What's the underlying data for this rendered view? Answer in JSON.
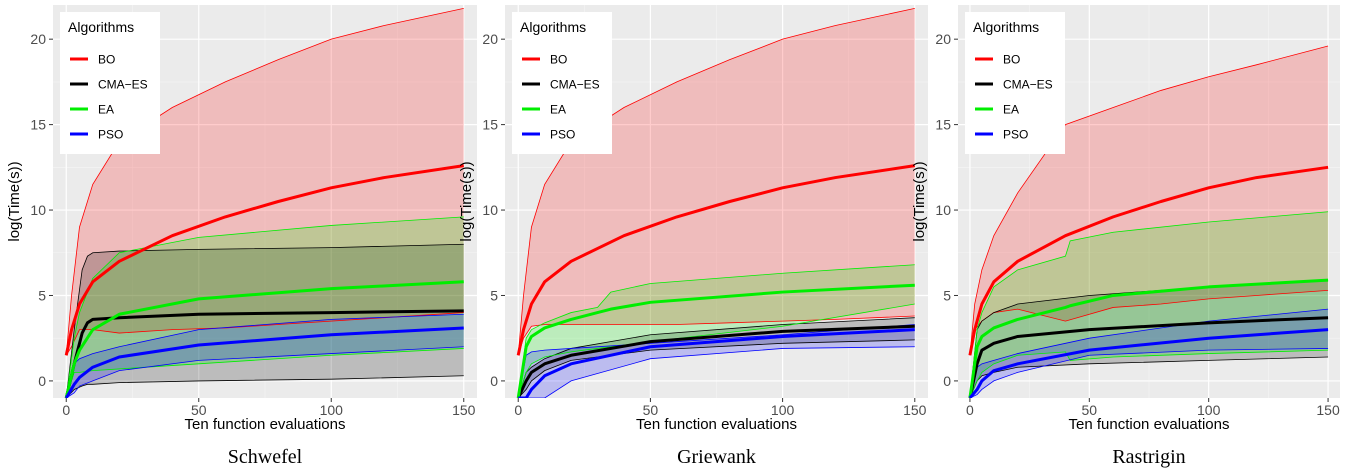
{
  "chart_data": [
    {
      "type": "line",
      "caption": "Schwefel",
      "xlabel": "Ten function evaluations",
      "ylabel": "log(Time(s))",
      "xlim": [
        -5,
        155
      ],
      "ylim": [
        -1,
        22
      ],
      "xticks": [
        0,
        50,
        100,
        150
      ],
      "yticks": [
        0,
        5,
        10,
        15,
        20
      ],
      "grid": true,
      "legend": {
        "title": "Algorithms",
        "position": "top-left",
        "entries": [
          "BO",
          "CMA−ES",
          "EA",
          "PSO"
        ]
      },
      "series": [
        {
          "name": "BO",
          "color": "#ff0000",
          "x": [
            0,
            2,
            5,
            10,
            20,
            40,
            60,
            80,
            100,
            120,
            150
          ],
          "mean": [
            1.5,
            3.0,
            4.5,
            5.8,
            7.0,
            8.5,
            9.6,
            10.5,
            11.3,
            11.9,
            12.6
          ],
          "upper": [
            1.5,
            5.0,
            9.0,
            11.5,
            14.0,
            16.0,
            17.5,
            18.8,
            20.0,
            20.8,
            21.8
          ],
          "lower": [
            1.5,
            2.0,
            3.0,
            3.0,
            2.8,
            3.0,
            3.1,
            3.3,
            3.5,
            3.7,
            4.0
          ]
        },
        {
          "name": "CMA−ES",
          "color": "#000000",
          "x": [
            0,
            3,
            6,
            8,
            10,
            20,
            50,
            100,
            150
          ],
          "mean": [
            -1.0,
            1.0,
            2.8,
            3.4,
            3.6,
            3.7,
            3.9,
            4.0,
            4.1
          ],
          "upper": [
            -1.0,
            3.0,
            6.5,
            7.3,
            7.5,
            7.6,
            7.7,
            7.8,
            8.0
          ],
          "lower": [
            -1.0,
            -0.5,
            -0.3,
            -0.2,
            -0.2,
            -0.1,
            0.0,
            0.1,
            0.3
          ]
        },
        {
          "name": "EA",
          "color": "#00ee00",
          "x": [
            0,
            3,
            5,
            10,
            20,
            50,
            100,
            150
          ],
          "mean": [
            -1.0,
            1.0,
            1.8,
            3.0,
            3.9,
            4.8,
            5.4,
            5.8
          ],
          "upper": [
            -1.0,
            2.5,
            4.0,
            6.0,
            7.5,
            8.4,
            9.1,
            9.6
          ],
          "lower": [
            -1.0,
            0.5,
            0.5,
            0.6,
            0.7,
            1.0,
            1.5,
            1.9
          ]
        },
        {
          "name": "PSO",
          "color": "#0000ff",
          "x": [
            0,
            3,
            5,
            10,
            20,
            50,
            100,
            150
          ],
          "mean": [
            -1.0,
            -0.2,
            0.2,
            0.8,
            1.4,
            2.1,
            2.7,
            3.1
          ],
          "upper": [
            -1.0,
            1.0,
            1.3,
            1.6,
            2.0,
            3.0,
            3.6,
            3.9
          ],
          "lower": [
            -1.0,
            -0.7,
            -0.3,
            0.0,
            0.6,
            1.2,
            1.6,
            2.0
          ]
        }
      ]
    },
    {
      "type": "line",
      "caption": "Griewank",
      "xlabel": "Ten function evaluations",
      "ylabel": "log(Time(s))",
      "xlim": [
        -5,
        155
      ],
      "ylim": [
        -1,
        22
      ],
      "xticks": [
        0,
        50,
        100,
        150
      ],
      "yticks": [
        0,
        5,
        10,
        15,
        20
      ],
      "grid": true,
      "legend": {
        "title": "Algorithms",
        "position": "top-left",
        "entries": [
          "BO",
          "CMA−ES",
          "EA",
          "PSO"
        ]
      },
      "series": [
        {
          "name": "BO",
          "color": "#ff0000",
          "x": [
            0,
            2,
            5,
            10,
            20,
            40,
            60,
            80,
            100,
            120,
            150
          ],
          "mean": [
            1.5,
            3.0,
            4.5,
            5.8,
            7.0,
            8.5,
            9.6,
            10.5,
            11.3,
            11.9,
            12.6
          ],
          "upper": [
            1.5,
            5.0,
            9.0,
            11.5,
            14.0,
            16.0,
            17.5,
            18.8,
            20.0,
            20.8,
            21.8
          ],
          "lower": [
            1.5,
            2.5,
            3.2,
            3.3,
            3.3,
            3.3,
            3.3,
            3.4,
            3.5,
            3.6,
            3.8
          ]
        },
        {
          "name": "CMA−ES",
          "color": "#000000",
          "x": [
            0,
            3,
            5,
            10,
            20,
            50,
            100,
            150
          ],
          "mean": [
            -1.0,
            0.0,
            0.5,
            1.0,
            1.5,
            2.3,
            2.9,
            3.2
          ],
          "upper": [
            -1.0,
            0.5,
            0.8,
            1.3,
            1.9,
            2.7,
            3.3,
            3.7
          ],
          "lower": [
            -1.0,
            -0.5,
            0.0,
            0.6,
            1.2,
            1.8,
            2.2,
            2.4
          ]
        },
        {
          "name": "EA",
          "color": "#00ee00",
          "x": [
            0,
            3,
            5,
            10,
            20,
            30,
            35,
            50,
            100,
            150
          ],
          "mean": [
            -1.0,
            2.0,
            2.6,
            3.1,
            3.6,
            4.0,
            4.2,
            4.6,
            5.2,
            5.6
          ],
          "upper": [
            -1.0,
            2.5,
            3.0,
            3.4,
            4.0,
            4.3,
            5.2,
            5.7,
            6.3,
            6.8
          ],
          "lower": [
            -1.0,
            0.5,
            1.0,
            1.4,
            1.7,
            1.9,
            2.0,
            2.3,
            3.2,
            4.5
          ]
        },
        {
          "name": "PSO",
          "color": "#0000ff",
          "x": [
            0,
            3,
            5,
            10,
            20,
            50,
            100,
            150
          ],
          "mean": [
            -1.0,
            -1.0,
            -0.5,
            0.3,
            1.0,
            2.0,
            2.6,
            3.0
          ],
          "upper": [
            -1.0,
            1.5,
            1.7,
            1.8,
            1.9,
            2.2,
            2.7,
            3.3
          ],
          "lower": [
            -1.0,
            -1.0,
            -1.0,
            -1.0,
            0.0,
            1.3,
            1.9,
            2.0
          ]
        }
      ]
    },
    {
      "type": "line",
      "caption": "Rastrigin",
      "xlabel": "Ten function evaluations",
      "ylabel": "log(Time(s))",
      "xlim": [
        -5,
        155
      ],
      "ylim": [
        -1,
        22
      ],
      "xticks": [
        0,
        50,
        100,
        150
      ],
      "yticks": [
        0,
        5,
        10,
        15,
        20
      ],
      "grid": true,
      "legend": {
        "title": "Algorithms",
        "position": "top-left",
        "entries": [
          "BO",
          "CMA−ES",
          "EA",
          "PSO"
        ]
      },
      "series": [
        {
          "name": "BO",
          "color": "#ff0000",
          "x": [
            0,
            2,
            5,
            10,
            20,
            40,
            60,
            80,
            100,
            120,
            150
          ],
          "mean": [
            1.5,
            3.0,
            4.5,
            5.8,
            7.0,
            8.5,
            9.6,
            10.5,
            11.3,
            11.9,
            12.5
          ],
          "upper": [
            1.5,
            4.5,
            6.5,
            8.5,
            11.0,
            15.0,
            16.0,
            17.0,
            17.8,
            18.5,
            19.6
          ],
          "lower": [
            1.5,
            3.0,
            3.5,
            4.0,
            4.2,
            3.5,
            4.3,
            4.5,
            4.8,
            5.0,
            5.3
          ]
        },
        {
          "name": "CMA−ES",
          "color": "#000000",
          "x": [
            0,
            3,
            5,
            10,
            20,
            50,
            100,
            150
          ],
          "mean": [
            -1.0,
            1.0,
            1.8,
            2.2,
            2.6,
            3.0,
            3.4,
            3.7
          ],
          "upper": [
            -1.0,
            3.0,
            3.5,
            4.0,
            4.5,
            5.0,
            5.5,
            5.9
          ],
          "lower": [
            -1.0,
            0.0,
            0.3,
            0.5,
            0.8,
            1.0,
            1.2,
            1.4
          ]
        },
        {
          "name": "EA",
          "color": "#00ee00",
          "x": [
            0,
            3,
            5,
            10,
            20,
            40,
            42,
            60,
            100,
            150
          ],
          "mean": [
            -1.0,
            2.0,
            2.6,
            3.1,
            3.6,
            4.3,
            4.4,
            5.0,
            5.5,
            5.9
          ],
          "upper": [
            -1.0,
            3.0,
            4.0,
            5.5,
            6.5,
            7.3,
            8.2,
            8.7,
            9.3,
            9.9
          ],
          "lower": [
            -1.0,
            0.0,
            0.5,
            1.0,
            1.5,
            1.7,
            1.2,
            1.4,
            1.6,
            1.8
          ]
        },
        {
          "name": "PSO",
          "color": "#0000ff",
          "x": [
            0,
            3,
            5,
            10,
            20,
            50,
            100,
            150
          ],
          "mean": [
            -1.0,
            -0.5,
            0.0,
            0.6,
            1.0,
            1.8,
            2.5,
            3.0
          ],
          "upper": [
            -1.0,
            0.8,
            1.0,
            1.2,
            1.6,
            2.5,
            3.5,
            4.2
          ],
          "lower": [
            -1.0,
            -0.8,
            -0.5,
            0.0,
            0.5,
            1.5,
            1.8,
            1.9
          ]
        }
      ]
    }
  ]
}
